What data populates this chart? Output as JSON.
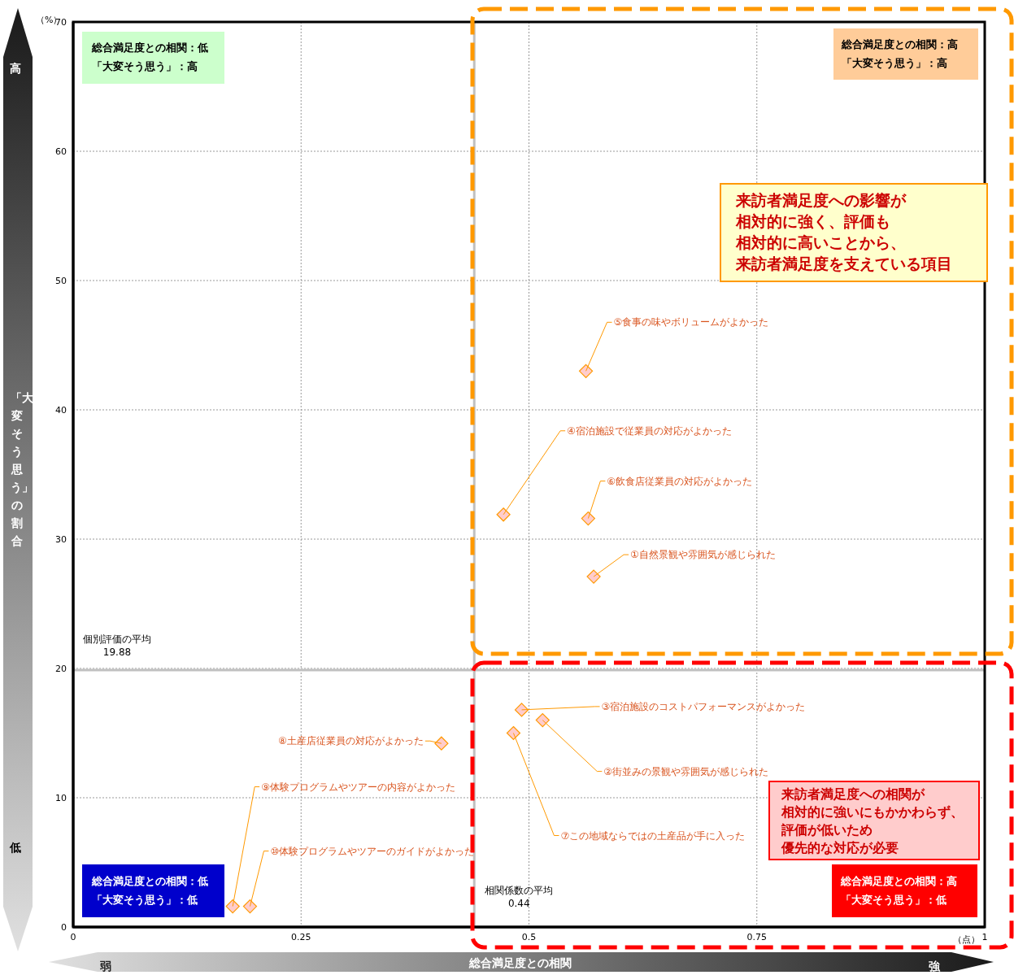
{
  "chart_data": {
    "type": "scatter",
    "xlabel": "総合満足度との相関",
    "ylabel": "「大変そう思う」の割合",
    "x": [
      0.571,
      0.515,
      0.492,
      0.472,
      0.5625,
      0.565,
      0.483,
      0.404,
      0.175,
      0.194
    ],
    "values": [
      27.1,
      16.0,
      16.8,
      31.9,
      43.0,
      31.6,
      15.0,
      14.2,
      1.6,
      1.6
    ],
    "color": "#ffcccc",
    "marker": "diamond",
    "grid": true,
    "xlim": [
      0,
      1
    ],
    "xticks": [
      0,
      0.25,
      0.5,
      0.75,
      1
    ],
    "ylim": [
      0,
      70
    ],
    "yticks": [
      0,
      10,
      20,
      30,
      40,
      50,
      60,
      70
    ],
    "ref_lines": [
      {
        "axis": "x",
        "value": 0.44,
        "label": "相関係数の平均",
        "color": "#c0c0c0"
      },
      {
        "axis": "y",
        "value": 19.88,
        "label": "個別評価の平均",
        "color": "#c0c0c0"
      }
    ],
    "annotations": [
      {
        "text": "①自然景観や雰囲気が感じられた",
        "x": 0.571,
        "y": 27.1
      },
      {
        "text": "②街並みの景観や雰囲気が感じられた",
        "x": 0.515,
        "y": 16.0
      },
      {
        "text": "③宿泊施設のコストパフォーマンスがよかった",
        "x": 0.492,
        "y": 16.8
      },
      {
        "text": "④宿泊施設で従業員の対応がよかった",
        "x": 0.472,
        "y": 31.9
      },
      {
        "text": "⑤食事の味やボリュームがよかった",
        "x": 0.5625,
        "y": 43.0
      },
      {
        "text": "⑥飲食店従業員の対応がよかった",
        "x": 0.565,
        "y": 31.6
      },
      {
        "text": "⑦この地域ならではの土産品が手に入った",
        "x": 0.483,
        "y": 15.0
      },
      {
        "text": "⑧土産店従業員の対応がよかった",
        "x": 0.404,
        "y": 14.2
      },
      {
        "text": "⑨体験プログラムやツアーの内容がよかった",
        "x": 0.175,
        "y": 1.6
      },
      {
        "text": "⑩体験プログラムやツアーのガイドがよかった",
        "x": 0.194,
        "y": 1.6
      },
      "（%）",
      "（点）",
      "総合満足度との相関：低",
      "「大変そう思う」：高",
      "総合満足度との相関：高",
      "「大変そう思う」：高",
      "総合満足度との相関：低",
      "「大変そう思う」：低",
      "総合満足度との相関：高",
      "「大変そう思う」：低",
      "来訪者満足度への影響が",
      "相対的に強く、評価も",
      "相対的に高いことから、",
      "来訪者満足度を支えている項目",
      "来訪者満足度への相関が",
      "相対的に強いにもかかわらず、",
      "評価が低いため",
      "優先的な対応が必要",
      "高",
      "低",
      "弱",
      "強",
      "0.44",
      "19.88"
    ]
  }
}
